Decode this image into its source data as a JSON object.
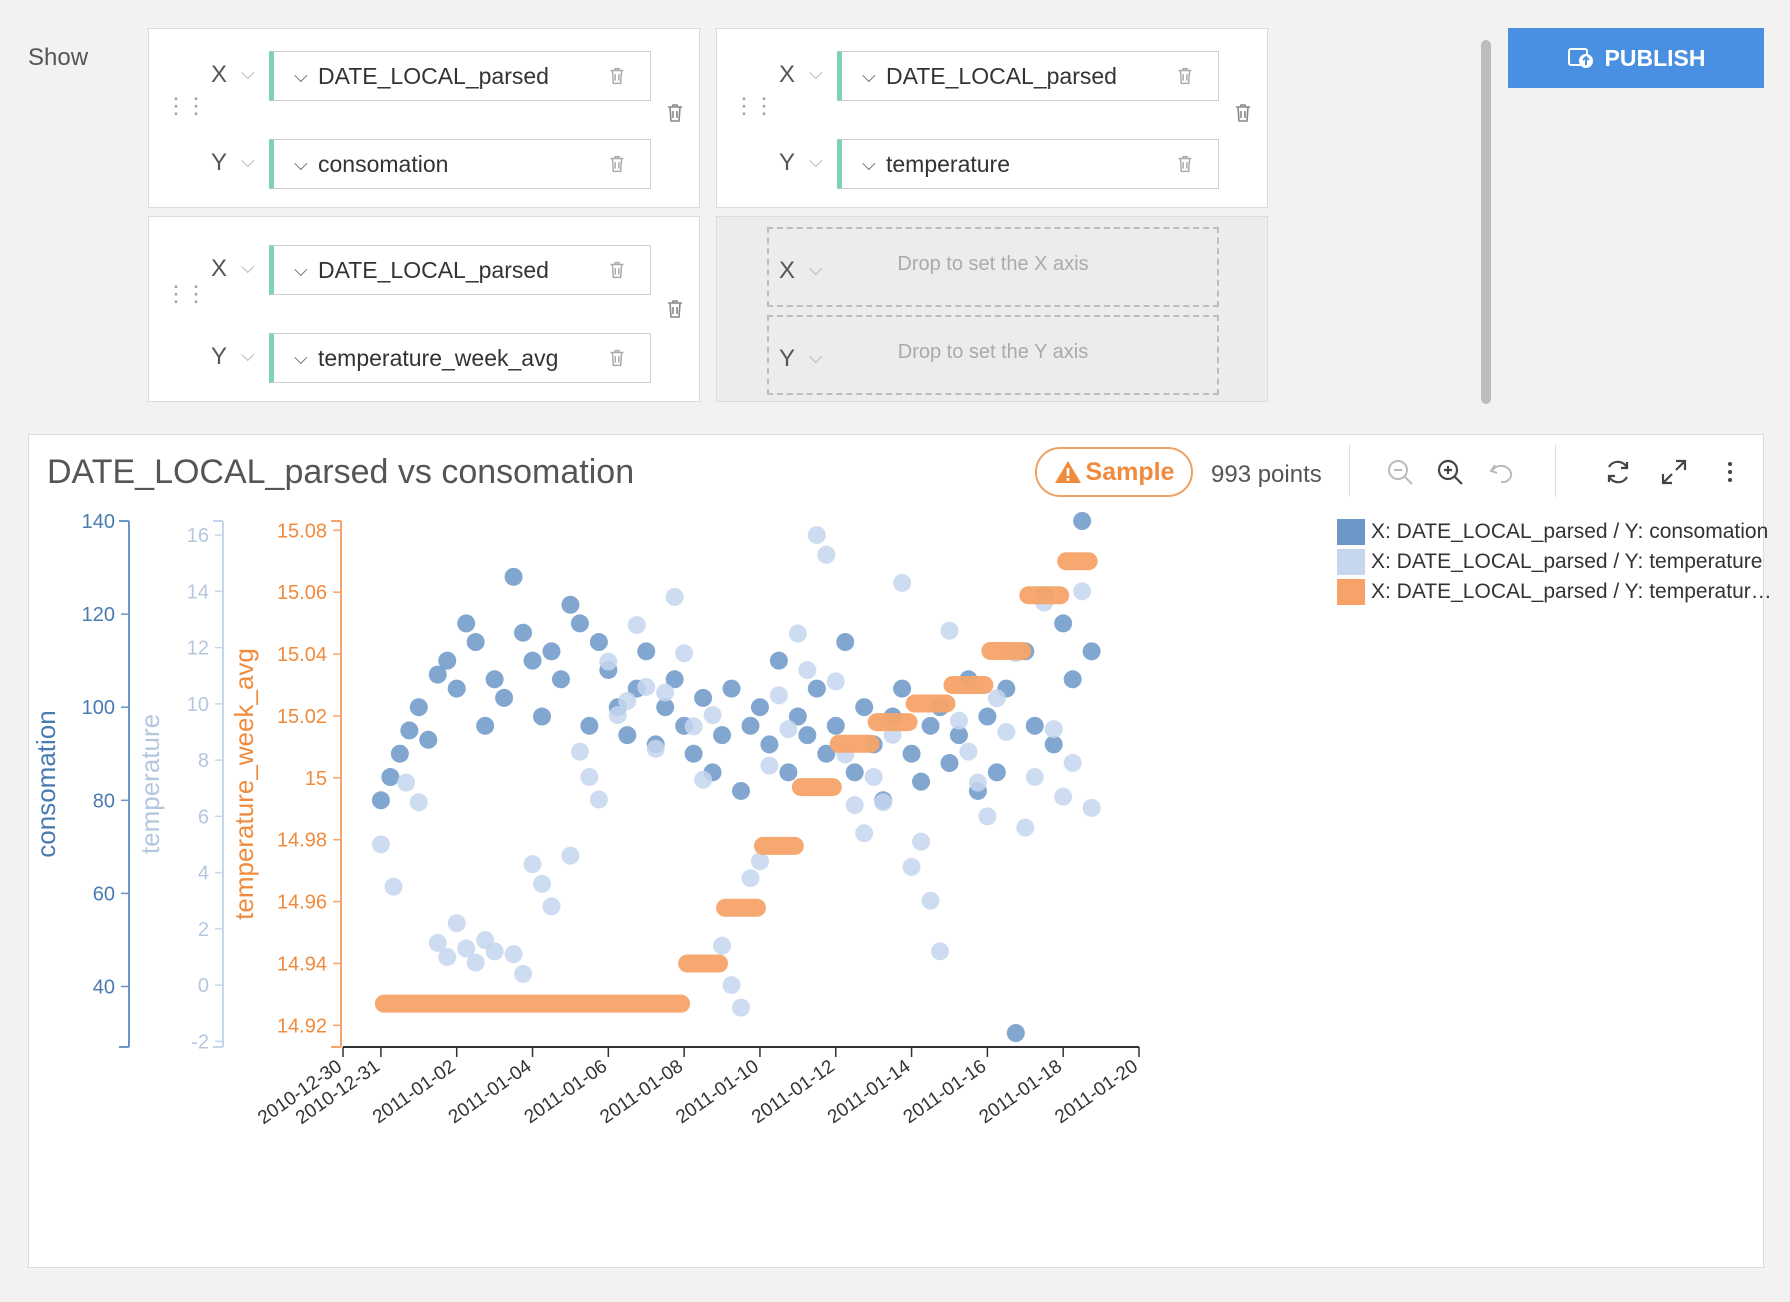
{
  "show_label": "Show",
  "publish_label": "PUBLISH",
  "cards": [
    {
      "x_letter": "X",
      "y_letter": "Y",
      "x_field": "DATE_LOCAL_parsed",
      "y_field": "consomation"
    },
    {
      "x_letter": "X",
      "y_letter": "Y",
      "x_field": "DATE_LOCAL_parsed",
      "y_field": "temperature"
    },
    {
      "x_letter": "X",
      "y_letter": "Y",
      "x_field": "DATE_LOCAL_parsed",
      "y_field": "temperature_week_avg"
    }
  ],
  "empty_card": {
    "x_letter": "X",
    "y_letter": "Y",
    "x_placeholder": "Drop to set the X axis",
    "y_placeholder": "Drop to set the Y axis"
  },
  "chart": {
    "title": "DATE_LOCAL_parsed vs consomation",
    "sample_label": "Sample",
    "points_label": "993 points",
    "legend": [
      "X: DATE_LOCAL_parsed / Y: consomation",
      "X: DATE_LOCAL_parsed / Y: temperature",
      "X: DATE_LOCAL_parsed / Y: temperatur…"
    ]
  },
  "colors": {
    "consomation": "#6b97c7",
    "temperature": "#c5d6ee",
    "week_avg": "#f5a368",
    "accent": "#4a90e2",
    "sample": "#f08a3c"
  },
  "icons": [
    "drag-handle-icon",
    "chevron-down-icon",
    "trash-icon",
    "publish-icon",
    "warning-icon",
    "zoom-out-icon",
    "zoom-in-icon",
    "undo-icon",
    "refresh-icon",
    "fullscreen-icon",
    "more-vertical-icon"
  ],
  "chart_data": {
    "type": "scatter",
    "title": "DATE_LOCAL_parsed vs consomation",
    "xlabel": "",
    "x_ticks": [
      "2010-12-30",
      "2010-12-31",
      "2011-01-02",
      "2011-01-04",
      "2011-01-06",
      "2011-01-08",
      "2011-01-10",
      "2011-01-12",
      "2011-01-14",
      "2011-01-16",
      "2011-01-18",
      "2011-01-20"
    ],
    "xlim": [
      "2010-12-30",
      "2011-01-20"
    ],
    "axes": [
      {
        "label": "consomation",
        "ticks": [
          40,
          60,
          80,
          100,
          120,
          140
        ],
        "ylim": [
          27,
          140
        ]
      },
      {
        "label": "temperature",
        "ticks": [
          -2,
          0,
          2,
          4,
          6,
          8,
          10,
          12,
          14,
          16
        ],
        "ylim": [
          -2.2,
          16.5
        ]
      },
      {
        "label": "temperature_week_avg",
        "ticks": [
          14.92,
          14.94,
          14.96,
          14.98,
          15,
          15.02,
          15.04,
          15.06,
          15.08
        ],
        "ylim": [
          14.913,
          15.083
        ]
      }
    ],
    "legend_position": "top-right",
    "series": [
      {
        "name": "X: DATE_LOCAL_parsed / Y: consomation",
        "axis": 0,
        "points": [
          [
            "2010-12-31T00:00",
            80
          ],
          [
            "2010-12-31T06:00",
            85
          ],
          [
            "2010-12-31T12:00",
            90
          ],
          [
            "2010-12-31T18:00",
            95
          ],
          [
            "2011-01-01T00:00",
            100
          ],
          [
            "2011-01-01T06:00",
            93
          ],
          [
            "2011-01-01T12:00",
            107
          ],
          [
            "2011-01-01T18:00",
            110
          ],
          [
            "2011-01-02T00:00",
            104
          ],
          [
            "2011-01-02T06:00",
            118
          ],
          [
            "2011-01-02T12:00",
            114
          ],
          [
            "2011-01-02T18:00",
            96
          ],
          [
            "2011-01-03T00:00",
            106
          ],
          [
            "2011-01-03T06:00",
            102
          ],
          [
            "2011-01-03T12:00",
            128
          ],
          [
            "2011-01-03T18:00",
            116
          ],
          [
            "2011-01-04T00:00",
            110
          ],
          [
            "2011-01-04T06:00",
            98
          ],
          [
            "2011-01-04T12:00",
            112
          ],
          [
            "2011-01-04T18:00",
            106
          ],
          [
            "2011-01-05T00:00",
            122
          ],
          [
            "2011-01-05T06:00",
            118
          ],
          [
            "2011-01-05T12:00",
            96
          ],
          [
            "2011-01-05T18:00",
            114
          ],
          [
            "2011-01-06T00:00",
            108
          ],
          [
            "2011-01-06T06:00",
            100
          ],
          [
            "2011-01-06T12:00",
            94
          ],
          [
            "2011-01-06T18:00",
            104
          ],
          [
            "2011-01-07T00:00",
            112
          ],
          [
            "2011-01-07T06:00",
            92
          ],
          [
            "2011-01-07T12:00",
            100
          ],
          [
            "2011-01-07T18:00",
            106
          ],
          [
            "2011-01-08T00:00",
            96
          ],
          [
            "2011-01-08T06:00",
            90
          ],
          [
            "2011-01-08T12:00",
            102
          ],
          [
            "2011-01-08T18:00",
            86
          ],
          [
            "2011-01-09T00:00",
            94
          ],
          [
            "2011-01-09T06:00",
            104
          ],
          [
            "2011-01-09T12:00",
            82
          ],
          [
            "2011-01-09T18:00",
            96
          ],
          [
            "2011-01-10T00:00",
            100
          ],
          [
            "2011-01-10T06:00",
            92
          ],
          [
            "2011-01-10T12:00",
            110
          ],
          [
            "2011-01-10T18:00",
            86
          ],
          [
            "2011-01-11T00:00",
            98
          ],
          [
            "2011-01-11T06:00",
            94
          ],
          [
            "2011-01-11T12:00",
            104
          ],
          [
            "2011-01-11T18:00",
            90
          ],
          [
            "2011-01-12T00:00",
            96
          ],
          [
            "2011-01-12T06:00",
            114
          ],
          [
            "2011-01-12T12:00",
            86
          ],
          [
            "2011-01-12T18:00",
            100
          ],
          [
            "2011-01-13T00:00",
            92
          ],
          [
            "2011-01-13T06:00",
            80
          ],
          [
            "2011-01-13T12:00",
            98
          ],
          [
            "2011-01-13T18:00",
            104
          ],
          [
            "2011-01-14T00:00",
            90
          ],
          [
            "2011-01-14T06:00",
            84
          ],
          [
            "2011-01-14T12:00",
            96
          ],
          [
            "2011-01-14T18:00",
            100
          ],
          [
            "2011-01-15T00:00",
            88
          ],
          [
            "2011-01-15T06:00",
            94
          ],
          [
            "2011-01-15T12:00",
            106
          ],
          [
            "2011-01-15T18:00",
            82
          ],
          [
            "2011-01-16T00:00",
            98
          ],
          [
            "2011-01-16T06:00",
            86
          ],
          [
            "2011-01-16T12:00",
            104
          ],
          [
            "2011-01-16T18:00",
            30
          ],
          [
            "2011-01-17T00:00",
            112
          ],
          [
            "2011-01-17T06:00",
            96
          ],
          [
            "2011-01-17T12:00",
            124
          ],
          [
            "2011-01-17T18:00",
            92
          ],
          [
            "2011-01-18T00:00",
            118
          ],
          [
            "2011-01-18T06:00",
            106
          ],
          [
            "2011-01-18T12:00",
            140
          ],
          [
            "2011-01-18T18:00",
            112
          ]
        ]
      },
      {
        "name": "X: DATE_LOCAL_parsed / Y: temperature",
        "axis": 1,
        "points": [
          [
            "2010-12-31T00:00",
            5.0
          ],
          [
            "2010-12-31T08:00",
            3.5
          ],
          [
            "2010-12-31T16:00",
            7.2
          ],
          [
            "2011-01-01T00:00",
            6.5
          ],
          [
            "2011-01-01T12:00",
            1.5
          ],
          [
            "2011-01-01T18:00",
            1.0
          ],
          [
            "2011-01-02T00:00",
            2.2
          ],
          [
            "2011-01-02T06:00",
            1.3
          ],
          [
            "2011-01-02T12:00",
            0.8
          ],
          [
            "2011-01-02T18:00",
            1.6
          ],
          [
            "2011-01-03T00:00",
            1.2
          ],
          [
            "2011-01-03T12:00",
            1.1
          ],
          [
            "2011-01-03T18:00",
            0.4
          ],
          [
            "2011-01-04T00:00",
            4.3
          ],
          [
            "2011-01-04T06:00",
            3.6
          ],
          [
            "2011-01-04T12:00",
            2.8
          ],
          [
            "2011-01-05T00:00",
            4.6
          ],
          [
            "2011-01-05T06:00",
            8.3
          ],
          [
            "2011-01-05T12:00",
            7.4
          ],
          [
            "2011-01-05T18:00",
            6.6
          ],
          [
            "2011-01-06T00:00",
            11.5
          ],
          [
            "2011-01-06T06:00",
            9.6
          ],
          [
            "2011-01-06T12:00",
            10.1
          ],
          [
            "2011-01-06T18:00",
            12.8
          ],
          [
            "2011-01-07T00:00",
            10.6
          ],
          [
            "2011-01-07T06:00",
            8.4
          ],
          [
            "2011-01-07T12:00",
            10.4
          ],
          [
            "2011-01-07T18:00",
            13.8
          ],
          [
            "2011-01-08T00:00",
            11.8
          ],
          [
            "2011-01-08T06:00",
            9.2
          ],
          [
            "2011-01-08T12:00",
            7.3
          ],
          [
            "2011-01-08T18:00",
            9.6
          ],
          [
            "2011-01-09T00:00",
            1.4
          ],
          [
            "2011-01-09T06:00",
            0.0
          ],
          [
            "2011-01-09T12:00",
            -0.8
          ],
          [
            "2011-01-09T18:00",
            3.8
          ],
          [
            "2011-01-10T00:00",
            4.4
          ],
          [
            "2011-01-10T06:00",
            7.8
          ],
          [
            "2011-01-10T12:00",
            10.3
          ],
          [
            "2011-01-10T18:00",
            9.1
          ],
          [
            "2011-01-11T00:00",
            12.5
          ],
          [
            "2011-01-11T06:00",
            11.2
          ],
          [
            "2011-01-11T12:00",
            16.0
          ],
          [
            "2011-01-11T18:00",
            15.3
          ],
          [
            "2011-01-12T00:00",
            10.8
          ],
          [
            "2011-01-12T06:00",
            8.2
          ],
          [
            "2011-01-12T12:00",
            6.4
          ],
          [
            "2011-01-12T18:00",
            5.4
          ],
          [
            "2011-01-13T00:00",
            7.4
          ],
          [
            "2011-01-13T06:00",
            6.5
          ],
          [
            "2011-01-13T12:00",
            8.9
          ],
          [
            "2011-01-13T18:00",
            14.3
          ],
          [
            "2011-01-14T00:00",
            4.2
          ],
          [
            "2011-01-14T06:00",
            5.1
          ],
          [
            "2011-01-14T12:00",
            3.0
          ],
          [
            "2011-01-14T18:00",
            1.2
          ],
          [
            "2011-01-15T00:00",
            12.6
          ],
          [
            "2011-01-15T06:00",
            9.4
          ],
          [
            "2011-01-15T12:00",
            8.3
          ],
          [
            "2011-01-15T18:00",
            7.2
          ],
          [
            "2011-01-16T00:00",
            6.0
          ],
          [
            "2011-01-16T06:00",
            10.2
          ],
          [
            "2011-01-16T12:00",
            9.0
          ],
          [
            "2011-01-16T18:00",
            11.8
          ],
          [
            "2011-01-17T00:00",
            5.6
          ],
          [
            "2011-01-17T06:00",
            7.4
          ],
          [
            "2011-01-17T12:00",
            13.6
          ],
          [
            "2011-01-17T18:00",
            9.1
          ],
          [
            "2011-01-18T00:00",
            6.7
          ],
          [
            "2011-01-18T06:00",
            7.9
          ],
          [
            "2011-01-18T12:00",
            14.0
          ],
          [
            "2011-01-18T18:00",
            6.3
          ]
        ]
      },
      {
        "name": "X: DATE_LOCAL_parsed / Y: temperatur…",
        "axis": 2,
        "segments": [
          [
            "2010-12-31",
            "2011-01-08",
            14.927
          ],
          [
            "2011-01-08",
            "2011-01-09",
            14.94
          ],
          [
            "2011-01-09",
            "2011-01-10",
            14.958
          ],
          [
            "2011-01-10",
            "2011-01-11",
            14.978
          ],
          [
            "2011-01-11",
            "2011-01-12",
            14.997
          ],
          [
            "2011-01-12",
            "2011-01-13",
            15.011
          ],
          [
            "2011-01-13",
            "2011-01-14",
            15.018
          ],
          [
            "2011-01-14",
            "2011-01-15",
            15.024
          ],
          [
            "2011-01-15",
            "2011-01-16",
            15.03
          ],
          [
            "2011-01-16",
            "2011-01-17",
            15.041
          ],
          [
            "2011-01-17",
            "2011-01-18",
            15.059
          ],
          [
            "2011-01-18",
            "2011-01-18T18:00",
            15.07
          ]
        ]
      }
    ]
  }
}
